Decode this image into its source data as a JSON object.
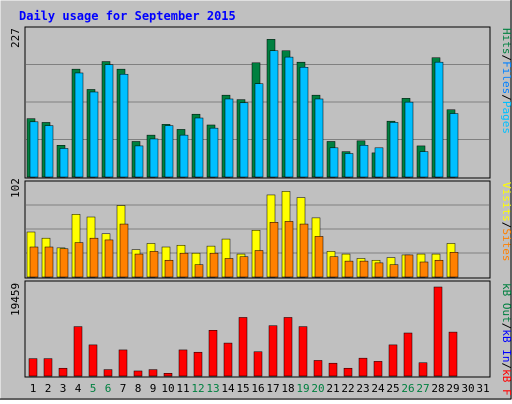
{
  "title": "Daily usage for September 2015",
  "colors": {
    "background": "#c0c0c0",
    "title": "#0000ff",
    "grid": "#808080",
    "hits_front": "#00bfff",
    "hits_back": "#008040",
    "files_front": "#00bfff",
    "visits_front": "#ff8000",
    "visits_back": "#ffff00",
    "kbin": "#ff0000",
    "weekend_label": "#008040",
    "weekday_label": "#000000"
  },
  "panels": {
    "top": {
      "max_label": "227",
      "legend": [
        {
          "text": "Hits",
          "color": "#008040"
        },
        {
          "text": "/",
          "color": "#000000"
        },
        {
          "text": "Files",
          "color": "#0080ff"
        },
        {
          "text": "/",
          "color": "#000000"
        },
        {
          "text": "Pages",
          "color": "#00bfff"
        }
      ]
    },
    "middle": {
      "max_label": "102",
      "legend": [
        {
          "text": "Visits",
          "color": "#ffff00"
        },
        {
          "text": "/",
          "color": "#000000"
        },
        {
          "text": "Sites",
          "color": "#ff8000"
        }
      ]
    },
    "bottom": {
      "max_label": "19459",
      "legend": [
        {
          "text": "kB Out",
          "color": "#008040"
        },
        {
          "text": "/",
          "color": "#000000"
        },
        {
          "text": "kB In",
          "color": "#0000ff"
        },
        {
          "text": "/",
          "color": "#000000"
        },
        {
          "text": "kB F",
          "color": "#ff0000"
        }
      ]
    }
  },
  "chart_data": {
    "type": "bar",
    "categories": [
      "1",
      "2",
      "3",
      "4",
      "5",
      "6",
      "7",
      "8",
      "9",
      "10",
      "11",
      "12",
      "13",
      "14",
      "15",
      "16",
      "17",
      "18",
      "19",
      "20",
      "21",
      "22",
      "23",
      "24",
      "25",
      "26",
      "27",
      "28",
      "29",
      "30",
      "31"
    ],
    "weekend_days": [
      "5",
      "6",
      "12",
      "13",
      "19",
      "20",
      "26",
      "27"
    ],
    "series": [
      {
        "name": "Hits",
        "panel": "top",
        "ymax": 227,
        "values": [
          92,
          86,
          50,
          170,
          138,
          182,
          170,
          56,
          66,
          83,
          75,
          99,
          82,
          129,
          122,
          180,
          217,
          199,
          181,
          129,
          56,
          40,
          57,
          38,
          88,
          124,
          49,
          188,
          106,
          0,
          0
        ]
      },
      {
        "name": "Files",
        "panel": "top",
        "ymax": 227,
        "values": [
          87,
          81,
          45,
          164,
          134,
          177,
          162,
          49,
          60,
          81,
          66,
          93,
          77,
          123,
          117,
          147,
          199,
          189,
          173,
          123,
          46,
          37,
          50,
          46,
          86,
          118,
          40,
          181,
          100,
          0,
          0
        ]
      },
      {
        "name": "Visits",
        "panel": "middle",
        "ymax": 102,
        "values": [
          51,
          44,
          33,
          71,
          68,
          49,
          81,
          31,
          38,
          34,
          36,
          27,
          35,
          43,
          26,
          53,
          93,
          97,
          90,
          67,
          29,
          26,
          21,
          19,
          22,
          25,
          26,
          26,
          38,
          0,
          0
        ]
      },
      {
        "name": "Sites",
        "panel": "middle",
        "ymax": 102,
        "values": [
          34,
          34,
          32,
          39,
          44,
          42,
          60,
          26,
          29,
          19,
          27,
          14,
          27,
          21,
          23,
          30,
          62,
          63,
          60,
          46,
          23,
          18,
          18,
          16,
          14,
          25,
          17,
          19,
          28,
          0,
          0
        ]
      },
      {
        "name": "kB F",
        "panel": "bottom",
        "ymax": 19459,
        "values": [
          3800,
          3800,
          1700,
          10800,
          6800,
          1400,
          5700,
          1100,
          1400,
          600,
          5700,
          5200,
          10000,
          7200,
          12800,
          5300,
          11000,
          12800,
          10800,
          3400,
          2800,
          1700,
          3900,
          3200,
          6800,
          9400,
          2900,
          19459,
          9600,
          0,
          0
        ]
      }
    ]
  }
}
